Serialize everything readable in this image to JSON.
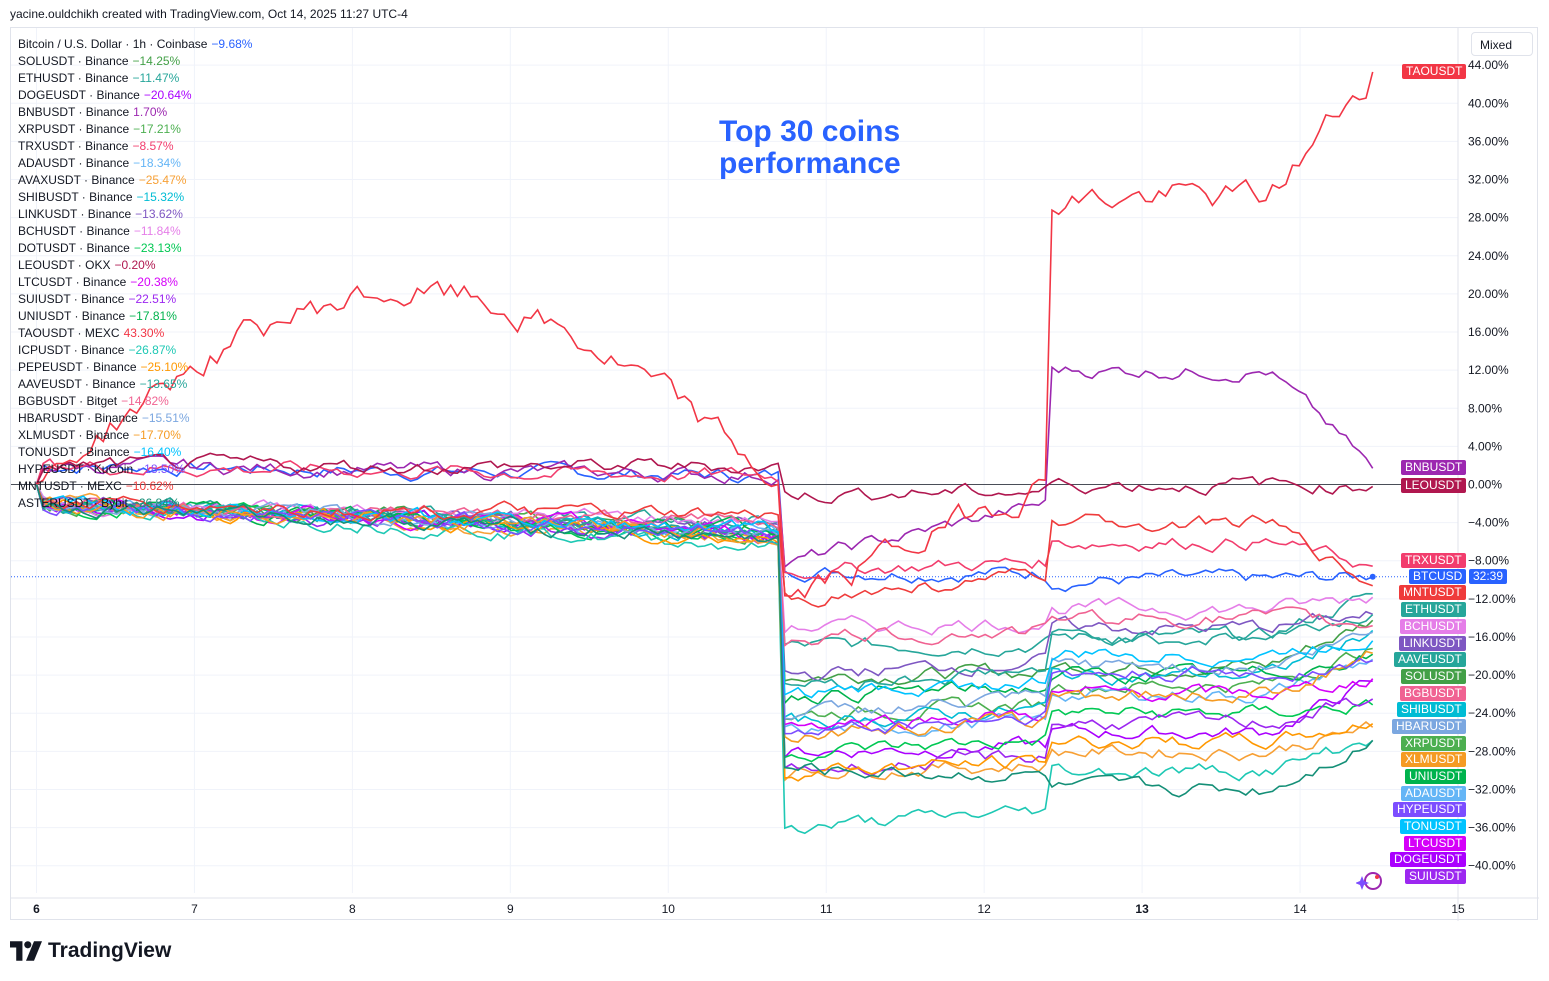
{
  "header": {
    "text": "yacine.ouldchikh created with TradingView.com, Oct 14, 2025 11:27 UTC-4"
  },
  "toolbar": {
    "scale_mode": "Mixed"
  },
  "annotation": {
    "line1": "Top 30 coins",
    "line2": "performance"
  },
  "brand": {
    "name": "TradingView"
  },
  "chart_data": {
    "type": "line",
    "title": "Top 30 coins performance",
    "x_ticks": [
      "6",
      "7",
      "8",
      "9",
      "10",
      "11",
      "12",
      "13",
      "14",
      "15"
    ],
    "bold_ticks": [
      "6",
      "13"
    ],
    "y_ticks": [
      "44.00%",
      "40.00%",
      "36.00%",
      "32.00%",
      "28.00%",
      "24.00%",
      "20.00%",
      "16.00%",
      "12.00%",
      "8.00%",
      "4.00%",
      "0.00%",
      "-4.00%",
      "-8.00%",
      "-12.00%",
      "-16.00%",
      "-20.00%",
      "-24.00%",
      "-28.00%",
      "-32.00%",
      "-36.00%",
      "-40.00%"
    ],
    "ylim": [
      -42,
      45
    ],
    "xlim": [
      6,
      15
    ],
    "x_end": 14.46,
    "grid": true,
    "btc_countdown": "32:39",
    "series": [
      {
        "name": "Bitcoin / U.S. Dollar · 1h · Coinbase",
        "label": "BTCUSD",
        "change": "−9.68%",
        "final": -9.68,
        "color": "#2962ff",
        "crash": -9,
        "mid": -10
      },
      {
        "name": "SOLUSDT · Binance",
        "label": "SOLUSDT",
        "change": "−14.25%",
        "final": -14.25,
        "color": "#43a047",
        "crash": -20,
        "mid": -19
      },
      {
        "name": "ETHUSDT · Binance",
        "label": "ETHUSDT",
        "change": "−11.47%",
        "final": -11.47,
        "color": "#26a69a",
        "crash": -17,
        "mid": -16
      },
      {
        "name": "DOGEUSDT · Binance",
        "label": "DOGEUSDT",
        "change": "−20.64%",
        "final": -20.64,
        "color": "#aa00ff",
        "crash": -28,
        "mid": -26
      },
      {
        "name": "BNBUSDT · Binance",
        "label": "BNBUSDT",
        "change": "1.70%",
        "final": 1.7,
        "color": "#9c27b0",
        "crash": -8,
        "mid": 12
      },
      {
        "name": "XRPUSDT · Binance",
        "label": "XRPUSDT",
        "change": "−17.21%",
        "final": -17.21,
        "color": "#4caf50",
        "crash": -24,
        "mid": -21
      },
      {
        "name": "TRXUSDT · Binance",
        "label": "TRXUSDT",
        "change": "−8.57%",
        "final": -8.57,
        "color": "#f23d6d",
        "crash": -9,
        "mid": -6
      },
      {
        "name": "ADAUSDT · Binance",
        "label": "ADAUSDT",
        "change": "−18.34%",
        "final": -18.34,
        "color": "#64b5f6",
        "crash": -26,
        "mid": -22
      },
      {
        "name": "AVAXUSDT · Binance",
        "label": "AVAXUSDT",
        "change": "−25.47%",
        "final": -25.47,
        "color": "#f7a035",
        "crash": -30,
        "mid": -28
      },
      {
        "name": "SHIBUSDT · Binance",
        "label": "SHIBUSDT",
        "change": "−15.32%",
        "final": -15.32,
        "color": "#00bcd4",
        "crash": -25,
        "mid": -20
      },
      {
        "name": "LINKUSDT · Binance",
        "label": "LINKUSDT",
        "change": "−13.62%",
        "final": -13.62,
        "color": "#7e57c2",
        "crash": -20,
        "mid": -15
      },
      {
        "name": "BCHUSDT · Binance",
        "label": "BCHUSDT",
        "change": "−11.84%",
        "final": -11.84,
        "color": "#e57ee8",
        "crash": -15,
        "mid": -13
      },
      {
        "name": "DOTUSDT · Binance",
        "label": "DOTUSDT",
        "change": "−23.13%",
        "final": -23.13,
        "color": "#00c853",
        "crash": -28,
        "mid": -24
      },
      {
        "name": "LEOUSDT · OKX",
        "label": "LEOUSDT",
        "change": "−0.20%",
        "final": -0.2,
        "color": "#b0174f",
        "crash": -1,
        "mid": 0
      },
      {
        "name": "LTCUSDT · Binance",
        "label": "LTCUSDT",
        "change": "−20.38%",
        "final": -20.38,
        "color": "#d500f9",
        "crash": -25,
        "mid": -22
      },
      {
        "name": "SUIUSDT · Binance",
        "label": "SUIUSDT",
        "change": "−22.51%",
        "final": -22.51,
        "color": "#9c27f0",
        "crash": -30,
        "mid": -25
      },
      {
        "name": "UNIUSDT · Binance",
        "label": "UNIUSDT",
        "change": "−17.81%",
        "final": -17.81,
        "color": "#00b34d",
        "crash": -22,
        "mid": -20
      },
      {
        "name": "TAOUSDT · MEXC",
        "label": "TAOUSDT",
        "change": "43.30%",
        "final": 43.3,
        "color": "#f23645",
        "crash": -12,
        "mid": 30
      },
      {
        "name": "ICPUSDT · Binance",
        "label": "ICPUSDT",
        "change": "−26.87%",
        "final": -26.87,
        "color": "#1ec8b4",
        "crash": -36,
        "mid": -30
      },
      {
        "name": "PEPEUSDT · Binance",
        "label": "PEPEUSDT",
        "change": "−25.10%",
        "final": -25.1,
        "color": "#ff9800",
        "crash": -30,
        "mid": -27
      },
      {
        "name": "AAVEUSDT · Binance",
        "label": "AAVEUSDT",
        "change": "−13.65%",
        "final": -13.65,
        "color": "#26a69a",
        "crash": -21,
        "mid": -16
      },
      {
        "name": "BGBUSDT · Bitget",
        "label": "BGBUSDT",
        "change": "−14.82%",
        "final": -14.82,
        "color": "#f06292",
        "crash": -16,
        "mid": -14
      },
      {
        "name": "HBARUSDT · Binance",
        "label": "HBARUSDT",
        "change": "−15.51%",
        "final": -15.51,
        "color": "#7ba7e0",
        "crash": -24,
        "mid": -19
      },
      {
        "name": "XLMUSDT · Binance",
        "label": "XLMUSDT",
        "change": "−17.70%",
        "final": -17.7,
        "color": "#f59b23",
        "crash": -26,
        "mid": -22
      },
      {
        "name": "TONUSDT · Binance",
        "label": "TONUSDT",
        "change": "−16.40%",
        "final": -16.4,
        "color": "#00c3ff",
        "crash": -22,
        "mid": -18
      },
      {
        "name": "HYPEUSDT · KuCoin",
        "label": "HYPEUSDT",
        "change": "−18.50%",
        "final": -18.5,
        "color": "#7c4dff",
        "crash": -26,
        "mid": -20
      },
      {
        "name": "MNTUSDT · MEXC",
        "label": "MNTUSDT",
        "change": "−10.62%",
        "final": -10.62,
        "color": "#ef3b3b",
        "crash": -12,
        "mid": -4
      },
      {
        "name": "ASTERUSDT · Bybit",
        "label": "ASTERUSDT",
        "change": "−26.84%",
        "final": -26.84,
        "color": "#148f77",
        "crash": -30,
        "mid": -32
      }
    ],
    "right_tags": [
      {
        "label": "TAOUSDT",
        "color": "#f23645",
        "value": 43.3
      },
      {
        "label": "BNBUSDT",
        "color": "#9c27b0",
        "value": 1.7
      },
      {
        "label": "LEOUSDT",
        "color": "#b0174f",
        "value": -0.2
      },
      {
        "label": "TRXUSDT",
        "color": "#f23d6d",
        "value": -8.0
      },
      {
        "label": "BTCUSD",
        "color": "#2962ff",
        "value": -9.68
      },
      {
        "label": "MNTUSDT",
        "color": "#ef3b3b",
        "value": -11.4
      },
      {
        "label": "ETHUSDT",
        "color": "#26a69a",
        "value": -13.2
      },
      {
        "label": "BCHUSDT",
        "color": "#e57ee8",
        "value": -14.95
      },
      {
        "label": "LINKUSDT",
        "color": "#7e57c2",
        "value": -16.7
      },
      {
        "label": "AAVEUSDT",
        "color": "#26a69a",
        "value": -18.45
      },
      {
        "label": "SOLUSDT",
        "color": "#43a047",
        "value": -20.2
      },
      {
        "label": "BGBUSDT",
        "color": "#f06292",
        "value": -21.95
      },
      {
        "label": "SHIBUSDT",
        "color": "#00bcd4",
        "value": -23.7
      },
      {
        "label": "HBARUSDT",
        "color": "#7ba7e0",
        "value": -25.45
      },
      {
        "label": "XRPUSDT",
        "color": "#4caf50",
        "value": -27.2
      },
      {
        "label": "XLMUSDT",
        "color": "#f59b23",
        "value": -28.95
      },
      {
        "label": "UNIUSDT",
        "color": "#00b34d",
        "value": -30.7
      },
      {
        "label": "ADAUSDT",
        "color": "#64b5f6",
        "value": -32.45
      },
      {
        "label": "HYPEUSDT",
        "color": "#7c4dff",
        "value": -34.2
      },
      {
        "label": "TONUSDT",
        "color": "#00c3ff",
        "value": -35.95
      },
      {
        "label": "LTCUSDT",
        "color": "#d500f9",
        "value": -37.7
      },
      {
        "label": "DOGEUSDT",
        "color": "#aa00ff",
        "value": -39.45
      },
      {
        "label": "SUIUSDT",
        "color": "#9c27f0",
        "value": -41.2
      }
    ]
  }
}
